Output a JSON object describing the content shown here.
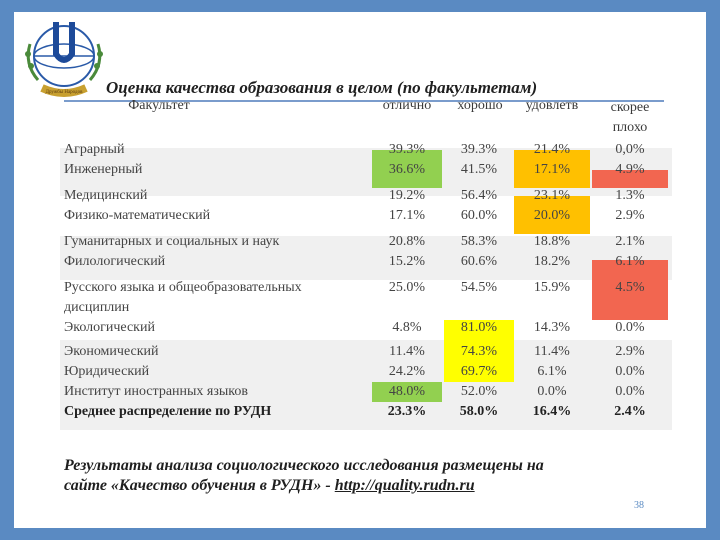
{
  "title": "Оценка качества образования в целом (по факультетам)",
  "logo_text": "Дружбы Народов",
  "colors": {
    "green": "#92d050",
    "orange": "#ffc000",
    "red": "#f26650",
    "yellow": "#ffff00",
    "band": "#f0f0f0",
    "frame": "#5a8ac2"
  },
  "headers": {
    "faculty": "Факультет",
    "excellent": "отлично",
    "good": "хорошо",
    "satisf": "удовлетв",
    "poor_1": "скорее",
    "poor_2": "плохо"
  },
  "rows": [
    {
      "name": "Аграрный",
      "v": [
        "39.3%",
        "39.3%",
        "21.4%",
        "0,0%"
      ]
    },
    {
      "name": "Инженерный",
      "v": [
        "36.6%",
        "41.5%",
        "17.1%",
        "4.9%"
      ]
    },
    {
      "name": "Медицинский",
      "v": [
        "19.2%",
        "56.4%",
        "23.1%",
        "1.3%"
      ]
    },
    {
      "name": "Физико-математический",
      "v": [
        "17.1%",
        "60.0%",
        "20.0%",
        "2.9%"
      ]
    },
    {
      "name": "Гуманитарных и социальных и наук",
      "v": [
        "20.8%",
        "58.3%",
        "18.8%",
        "2.1%"
      ]
    },
    {
      "name": "Филологический",
      "v": [
        "15.2%",
        "60.6%",
        "18.2%",
        "6.1%"
      ]
    },
    {
      "name_1": "Русского языка и общеобразовательных",
      "name_2": "дисциплин",
      "v": [
        "25.0%",
        "54.5%",
        "15.9%",
        "4.5%"
      ]
    },
    {
      "name": "Экологический",
      "v": [
        "4.8%",
        "81.0%",
        "14.3%",
        "0.0%"
      ]
    },
    {
      "name": "Экономический",
      "v": [
        "11.4%",
        "74.3%",
        "11.4%",
        "2.9%"
      ]
    },
    {
      "name": "Юридический",
      "v": [
        "24.2%",
        "69.7%",
        "6.1%",
        "0.0%"
      ]
    },
    {
      "name": "Институт иностранных языков",
      "v": [
        "48.0%",
        "52.0%",
        "0.0%",
        "0.0%"
      ]
    },
    {
      "name": "Среднее распределение по РУДН",
      "v": [
        "23.3%",
        "58.0%",
        "16.4%",
        "2.4%"
      ]
    }
  ],
  "footer": {
    "line1": "Результаты анализа социологического исследования размещены на",
    "line2_prefix": "сайте «Качество обучения  в РУДН» - ",
    "link": "http://quality.rudn.ru"
  },
  "page_number": "38"
}
